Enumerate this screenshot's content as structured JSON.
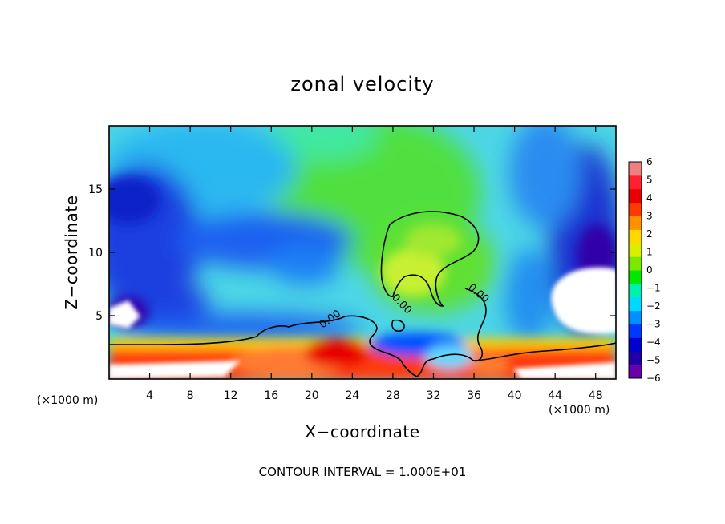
{
  "chart_data": {
    "type": "heatmap",
    "title": "zonal velocity",
    "xlabel": "X−coordinate",
    "ylabel": "Z−coordinate",
    "x_unit_left": "(×1000 m)",
    "x_unit_right": "(×1000 m)",
    "xlim": [
      0,
      50
    ],
    "ylim": [
      0,
      20
    ],
    "x_ticks": [
      4,
      8,
      12,
      16,
      20,
      24,
      28,
      32,
      36,
      40,
      44,
      48
    ],
    "y_ticks": [
      5,
      10,
      15
    ],
    "colorbar": {
      "min": -6,
      "max": 6,
      "labels": [
        "6",
        "5",
        "4",
        "3",
        "2",
        "1",
        "0",
        "−1",
        "−2",
        "−3",
        "−4",
        "−5",
        "−6"
      ],
      "colors": [
        "#6a00a8",
        "#1f00a8",
        "#0000d0",
        "#0038ff",
        "#0090ff",
        "#00d8ff",
        "#00f0b0",
        "#00e800",
        "#7ce800",
        "#d8f000",
        "#ffd800",
        "#ff9000",
        "#ff3a00",
        "#e80000",
        "#ff2030",
        "#f08080"
      ]
    },
    "contour_labels": [
      "0.00",
      "0.00",
      "0.00"
    ],
    "contour_interval": "CONTOUR INTERVAL = 1.000E+01"
  }
}
